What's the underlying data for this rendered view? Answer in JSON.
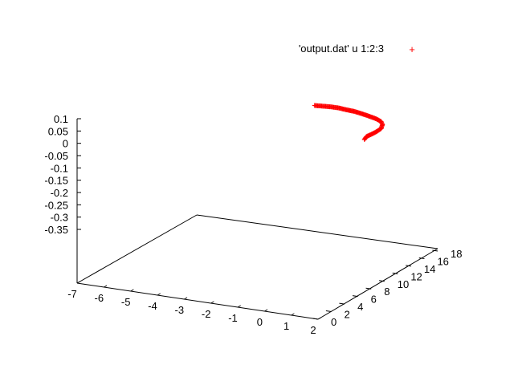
{
  "colors": {
    "series": "#ff0000",
    "axes": "#000000",
    "background": "#ffffff"
  },
  "legend": {
    "label": "'output.dat' u 1:2:3",
    "marker": "+"
  },
  "chart_data": {
    "type": "scatter",
    "projection": "3d",
    "title": "",
    "xlabel": "",
    "ylabel": "",
    "zlabel": "",
    "xlim": [
      -7,
      2
    ],
    "ylim": [
      0,
      18
    ],
    "zlim": [
      -0.35,
      0.1
    ],
    "x_ticks": [
      "-7",
      "-6",
      "-5",
      "-4",
      "-3",
      "-2",
      "-1",
      "0",
      "1",
      "2"
    ],
    "y_ticks": [
      "0",
      "2",
      "4",
      "6",
      "8",
      "10",
      "12",
      "14",
      "16",
      "18"
    ],
    "z_ticks": [
      "0.1",
      "0.05",
      "0",
      "-0.05",
      "-0.1",
      "-0.15",
      "-0.2",
      "-0.25",
      "-0.3",
      "-0.35"
    ],
    "grid": false,
    "legend_position": "top-right",
    "series": [
      {
        "name": "'output.dat' u 1:2:3",
        "marker": "+",
        "points": [
          {
            "x": -2.0,
            "y": 15.6,
            "z": -0.005
          },
          {
            "x": -1.6,
            "y": 15.2,
            "z": 0.005
          },
          {
            "x": -1.2,
            "y": 14.8,
            "z": 0.015
          },
          {
            "x": -0.8,
            "y": 14.4,
            "z": 0.023
          },
          {
            "x": -0.4,
            "y": 13.9,
            "z": 0.03
          },
          {
            "x": 0.0,
            "y": 13.5,
            "z": 0.036
          },
          {
            "x": 0.4,
            "y": 13.0,
            "z": 0.041
          },
          {
            "x": 0.8,
            "y": 12.5,
            "z": 0.045
          },
          {
            "x": 1.2,
            "y": 12.0,
            "z": 0.048
          },
          {
            "x": 1.5,
            "y": 11.5,
            "z": 0.05
          },
          {
            "x": 1.7,
            "y": 10.9,
            "z": 0.05
          },
          {
            "x": 1.8,
            "y": 10.3,
            "z": 0.045
          },
          {
            "x": 1.7,
            "y": 9.9,
            "z": 0.035
          },
          {
            "x": 1.55,
            "y": 9.7,
            "z": 0.025
          },
          {
            "x": 1.4,
            "y": 9.7,
            "z": 0.015
          },
          {
            "x": 1.3,
            "y": 9.8,
            "z": 0.0
          }
        ]
      }
    ]
  }
}
